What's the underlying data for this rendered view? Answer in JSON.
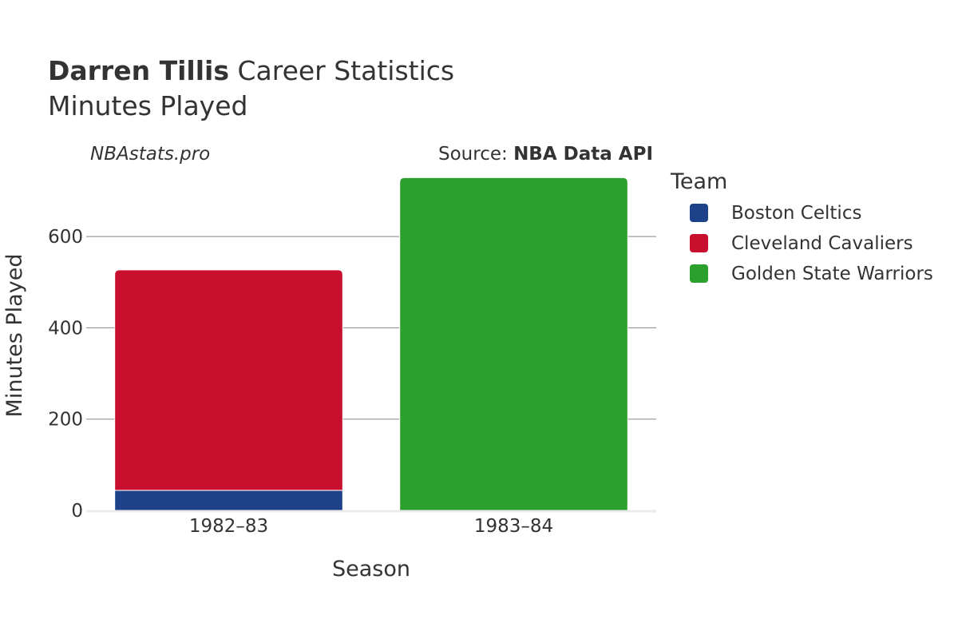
{
  "title": {
    "player": "Darren Tillis",
    "rest": " Career Statistics",
    "subtitle": "Minutes Played"
  },
  "watermark": "NBAstats.pro",
  "source": {
    "prefix": "Source: ",
    "name": "NBA Data API"
  },
  "legend": {
    "title": "Team"
  },
  "chart_data": {
    "type": "bar",
    "stacked": true,
    "categories": [
      "1982–83",
      "1983–84"
    ],
    "series": [
      {
        "name": "Boston Celtics",
        "color": "#1d428a",
        "values": [
          44,
          0
        ]
      },
      {
        "name": "Cleveland Cavaliers",
        "color": "#c8102e",
        "values": [
          483,
          0
        ]
      },
      {
        "name": "Golden State Warriors",
        "color": "#2ca02c",
        "values": [
          0,
          729
        ]
      }
    ],
    "xlabel": "Season",
    "ylabel": "Minutes Played",
    "yticks": [
      0,
      200,
      400,
      600
    ],
    "ylim": [
      0,
      760
    ],
    "grid": true,
    "legend_position": "right"
  }
}
